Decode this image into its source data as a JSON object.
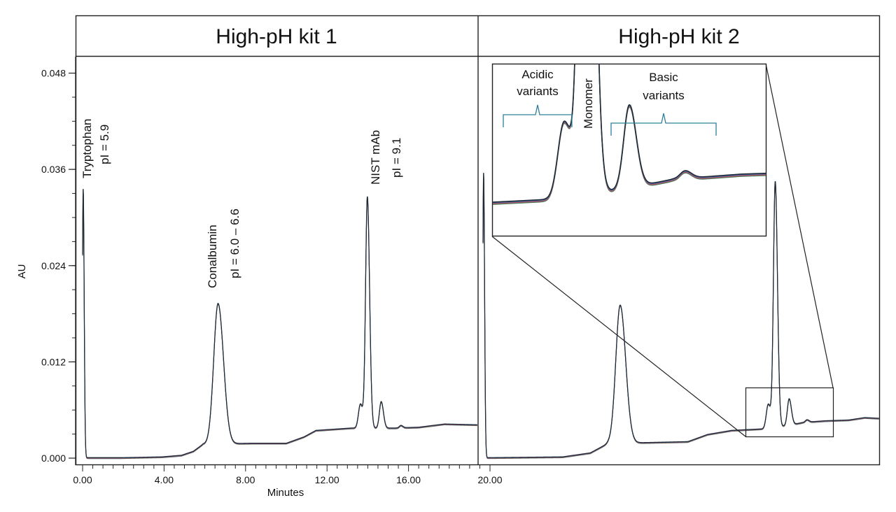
{
  "panels": [
    {
      "title": "High-pH kit 1"
    },
    {
      "title": "High-pH kit 2"
    }
  ],
  "colors": {
    "frame": "#222222",
    "trace_dark": "#1f2a36",
    "trace_green": "#3f7f5a",
    "trace_red": "#c04a5a",
    "trace_blue": "#4a6fa8",
    "bracket": "#2d7f9a"
  },
  "chart_data": [
    {
      "type": "line",
      "title": "High-pH kit 1",
      "xlabel": "Minutes",
      "ylabel": "AU",
      "xlim": [
        0,
        20
      ],
      "ylim": [
        0,
        0.05
      ],
      "x_ticks": [
        "0.00",
        "4.00",
        "8.00",
        "12.00",
        "16.00",
        "20.00"
      ],
      "x_tick_values": [
        0,
        4,
        8,
        12,
        16,
        20
      ],
      "y_ticks": [
        "0.000",
        "0.012",
        "0.024",
        "0.036",
        "0.048"
      ],
      "y_tick_values": [
        0,
        0.012,
        0.024,
        0.036,
        0.048
      ],
      "grid": false,
      "legend": "none",
      "baseline": [
        [
          0.3,
          0.0
        ],
        [
          2,
          0.0
        ],
        [
          4,
          0.0001
        ],
        [
          5,
          0.0003
        ],
        [
          5.6,
          0.0008
        ],
        [
          6.1,
          0.0017
        ],
        [
          8.5,
          0.0018
        ],
        [
          10.3,
          0.0018
        ],
        [
          11.2,
          0.0026
        ],
        [
          11.8,
          0.0034
        ],
        [
          13.6,
          0.0037
        ],
        [
          15.8,
          0.0037
        ],
        [
          17,
          0.0038
        ],
        [
          18.3,
          0.0042
        ],
        [
          20,
          0.0041
        ]
      ],
      "peaks": [
        {
          "x": 0.03,
          "height": 0.0335,
          "width": 0.04
        },
        {
          "x": 6.85,
          "height": 0.0175,
          "width": 0.22
        },
        {
          "x": 14.05,
          "height": 0.003,
          "width": 0.1
        },
        {
          "x": 14.4,
          "height": 0.0288,
          "width": 0.09
        },
        {
          "x": 15.1,
          "height": 0.0033,
          "width": 0.09
        },
        {
          "x": 16.1,
          "height": 0.0003,
          "width": 0.08
        }
      ],
      "annotations": [
        {
          "lines": [
            "Tryptophan",
            "pI = 5.9"
          ],
          "x": 0.03,
          "y": 0.0365
        },
        {
          "lines": [
            "Conalbumin",
            "pI = 6.0 – 6.6"
          ],
          "x": 6.8,
          "y": 0.0215
        },
        {
          "lines": [
            "NIST mAb",
            "pI = 9.1"
          ],
          "x": 14.4,
          "y": 0.0345
        }
      ]
    },
    {
      "type": "line",
      "title": "High-pH kit 2",
      "xlim": [
        0,
        20
      ],
      "ylim": [
        0,
        0.05
      ],
      "grid": false,
      "legend": "none",
      "baseline": [
        [
          0.3,
          0.0
        ],
        [
          4,
          0.0001
        ],
        [
          5.4,
          0.0006
        ],
        [
          6.3,
          0.0018
        ],
        [
          8.5,
          0.0019
        ],
        [
          10.3,
          0.002
        ],
        [
          11.3,
          0.0029
        ],
        [
          12.5,
          0.0034
        ],
        [
          14.1,
          0.0036
        ],
        [
          15.3,
          0.004
        ],
        [
          16.1,
          0.0044
        ],
        [
          17.2,
          0.0046
        ],
        [
          18.4,
          0.0047
        ],
        [
          19.2,
          0.005
        ],
        [
          20,
          0.0049
        ]
      ],
      "peaks": [
        {
          "x": 0.03,
          "height": 0.0355,
          "width": 0.04
        },
        {
          "x": 6.9,
          "height": 0.0172,
          "width": 0.22
        },
        {
          "x": 14.35,
          "height": 0.003,
          "width": 0.1
        },
        {
          "x": 14.7,
          "height": 0.0306,
          "width": 0.09
        },
        {
          "x": 15.4,
          "height": 0.0033,
          "width": 0.09
        },
        {
          "x": 16.3,
          "height": 0.0003,
          "width": 0.08
        }
      ],
      "inset": {
        "labels": {
          "acidic": [
            "Acidic",
            "variants"
          ],
          "monomer": "Monomer",
          "basic": [
            "Basic",
            "variants"
          ]
        },
        "xlim": [
          13.2,
          17.6
        ],
        "ylim": [
          0.0022,
          0.009
        ]
      }
    }
  ]
}
